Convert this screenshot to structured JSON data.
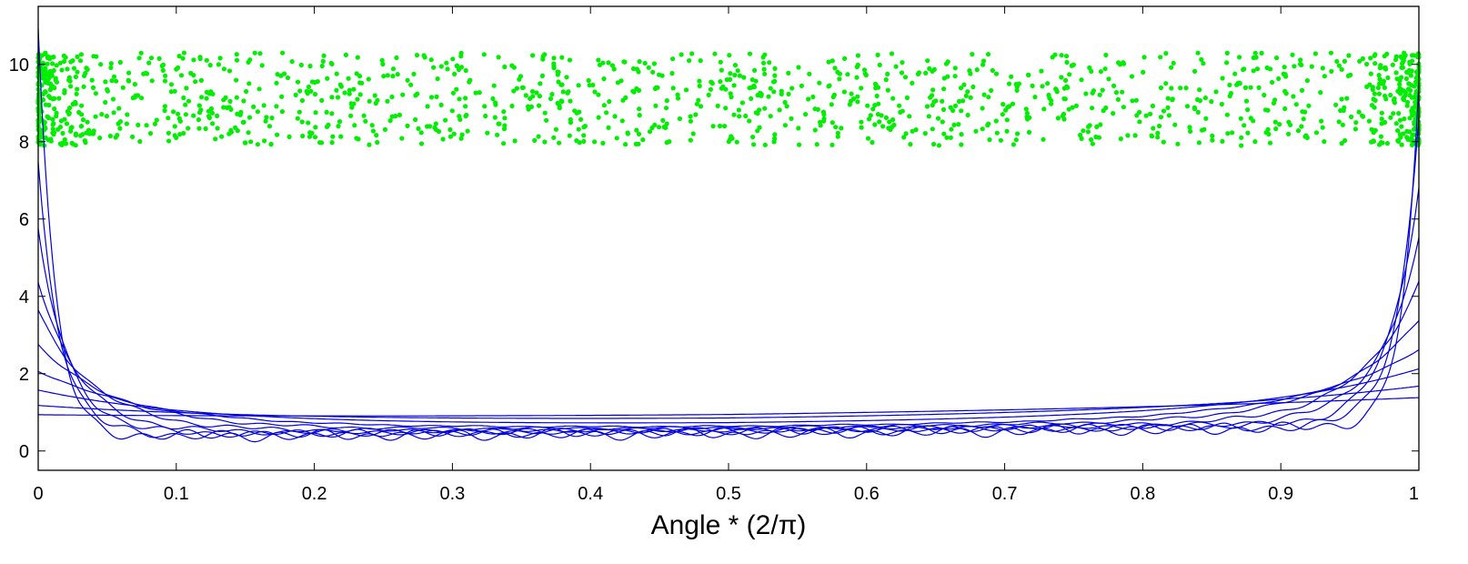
{
  "chart_data": {
    "type": "scatter",
    "title": "",
    "xlabel": "Angle * (2/π)",
    "ylabel": "",
    "xlim": [
      0,
      1
    ],
    "ylim": [
      -0.5,
      11.5
    ],
    "grid": false,
    "xticks": [
      0,
      0.1,
      0.2,
      0.3,
      0.4,
      0.5,
      0.6,
      0.7,
      0.8,
      0.9,
      1
    ],
    "xtick_labels": [
      "0",
      "0.1",
      "0.2",
      "0.3",
      "0.4",
      "0.5",
      "0.6",
      "0.7",
      "0.8",
      "0.9",
      "1"
    ],
    "yticks": [
      0,
      2,
      4,
      6,
      8,
      10
    ],
    "ytick_labels": [
      "0",
      "2",
      "4",
      "6",
      "8",
      "10"
    ],
    "colors": {
      "points": "#00ee00",
      "curves": "#0000dd",
      "axis": "#000000"
    },
    "scatter_band": {
      "y_min": 7.9,
      "y_max": 10.3,
      "x_min": 0,
      "x_max": 1,
      "approx_count": 1500,
      "edge_density": "higher near x = 0 and x = 1"
    },
    "series": [
      {
        "edge_left": 11.0,
        "edge_right": 9.2,
        "floor": 0.45,
        "decay": 0.012,
        "wiggle": 0.16
      },
      {
        "edge_left": 7.5,
        "edge_right": 8.5,
        "floor": 0.47,
        "decay": 0.016,
        "wiggle": 0.13
      },
      {
        "edge_left": 5.8,
        "edge_right": 6.7,
        "floor": 0.5,
        "decay": 0.022,
        "wiggle": 0.1
      },
      {
        "edge_left": 4.5,
        "edge_right": 5.3,
        "floor": 0.53,
        "decay": 0.03,
        "wiggle": 0.08
      },
      {
        "edge_left": 3.7,
        "edge_right": 4.2,
        "floor": 0.56,
        "decay": 0.042,
        "wiggle": 0.06
      },
      {
        "edge_left": 2.8,
        "edge_right": 3.2,
        "floor": 0.6,
        "decay": 0.06,
        "wiggle": 0.04
      },
      {
        "edge_left": 2.15,
        "edge_right": 2.45,
        "floor": 0.63,
        "decay": 0.085,
        "wiggle": 0.02
      },
      {
        "edge_left": 1.65,
        "edge_right": 1.95,
        "floor": 0.7,
        "decay": 0.12,
        "wiggle": 0.0
      },
      {
        "edge_left": 1.25,
        "edge_right": 1.5,
        "floor": 0.78,
        "decay": 0.18,
        "wiggle": 0.0
      },
      {
        "edge_left": 1.0,
        "edge_right": 1.2,
        "floor": 0.85,
        "decay": 0.3,
        "wiggle": 0.0
      }
    ]
  }
}
